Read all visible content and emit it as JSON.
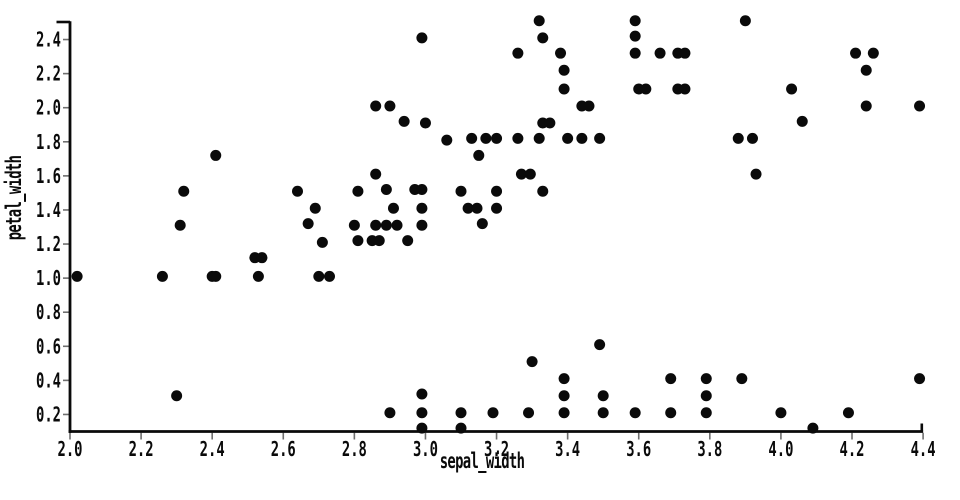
{
  "style": {
    "background_color": "#ffffff",
    "spine_color": "#0a0a0a",
    "tick_color": "#6f6f6f",
    "tick_label_color": "#0a0a0a",
    "axis_title_color": "#0a0a0a",
    "marker_color": "#0a0a0a"
  },
  "chart_data": {
    "type": "scatter",
    "title": "",
    "xlabel": "sepal_width",
    "ylabel": "petal_width",
    "xlim": [
      2.0,
      4.4
    ],
    "ylim": [
      0.1,
      2.5
    ],
    "grid": false,
    "legend": null,
    "marker": {
      "shape": "circle",
      "radius_px": 5.5
    },
    "x_tick_values": [
      2.0,
      2.2,
      2.4,
      2.6,
      2.8,
      3.0,
      3.2,
      3.4,
      3.6,
      3.8,
      4.0,
      4.2,
      4.4
    ],
    "x_tick_labels": [
      "2.0",
      "2.2",
      "2.4",
      "2.6",
      "2.8",
      "3.0",
      "3.2",
      "3.4",
      "3.6",
      "3.8",
      "4.0",
      "4.2",
      "4.4"
    ],
    "y_tick_values": [
      0.2,
      0.4,
      0.6,
      0.8,
      1.0,
      1.2,
      1.4,
      1.6,
      1.8,
      2.0,
      2.2,
      2.4
    ],
    "y_tick_labels": [
      "0.2",
      "0.4",
      "0.6",
      "0.8",
      "1.0",
      "1.2",
      "1.4",
      "1.6",
      "1.8",
      "2.0",
      "2.2",
      "2.4"
    ],
    "points": [
      [
        2.99,
        0.12
      ],
      [
        3.1,
        0.12
      ],
      [
        4.09,
        0.12
      ],
      [
        2.9,
        0.21
      ],
      [
        2.99,
        0.21
      ],
      [
        3.1,
        0.21
      ],
      [
        3.19,
        0.21
      ],
      [
        3.29,
        0.21
      ],
      [
        3.39,
        0.21
      ],
      [
        3.5,
        0.21
      ],
      [
        3.59,
        0.21
      ],
      [
        3.69,
        0.21
      ],
      [
        3.79,
        0.21
      ],
      [
        4.0,
        0.21
      ],
      [
        4.19,
        0.21
      ],
      [
        2.3,
        0.31
      ],
      [
        2.99,
        0.32
      ],
      [
        3.39,
        0.31
      ],
      [
        3.5,
        0.31
      ],
      [
        3.79,
        0.31
      ],
      [
        3.39,
        0.41
      ],
      [
        3.69,
        0.41
      ],
      [
        3.79,
        0.41
      ],
      [
        3.89,
        0.41
      ],
      [
        4.39,
        0.41
      ],
      [
        3.3,
        0.51
      ],
      [
        3.49,
        0.61
      ],
      [
        2.02,
        1.01
      ],
      [
        2.26,
        1.01
      ],
      [
        2.4,
        1.01
      ],
      [
        2.41,
        1.01
      ],
      [
        2.53,
        1.01
      ],
      [
        2.7,
        1.01
      ],
      [
        2.73,
        1.01
      ],
      [
        2.52,
        1.12
      ],
      [
        2.54,
        1.12
      ],
      [
        2.71,
        1.21
      ],
      [
        2.81,
        1.22
      ],
      [
        2.85,
        1.22
      ],
      [
        2.87,
        1.22
      ],
      [
        2.95,
        1.22
      ],
      [
        2.31,
        1.31
      ],
      [
        2.67,
        1.32
      ],
      [
        2.8,
        1.31
      ],
      [
        2.86,
        1.31
      ],
      [
        2.89,
        1.31
      ],
      [
        2.92,
        1.31
      ],
      [
        2.99,
        1.31
      ],
      [
        3.16,
        1.32
      ],
      [
        2.69,
        1.41
      ],
      [
        2.91,
        1.41
      ],
      [
        2.99,
        1.41
      ],
      [
        3.12,
        1.41
      ],
      [
        3.145,
        1.41
      ],
      [
        3.2,
        1.41
      ],
      [
        2.32,
        1.51
      ],
      [
        2.64,
        1.51
      ],
      [
        2.81,
        1.51
      ],
      [
        2.89,
        1.52
      ],
      [
        2.97,
        1.52
      ],
      [
        2.99,
        1.52
      ],
      [
        3.1,
        1.51
      ],
      [
        3.2,
        1.51
      ],
      [
        3.33,
        1.51
      ],
      [
        2.86,
        1.61
      ],
      [
        3.27,
        1.61
      ],
      [
        3.295,
        1.61
      ],
      [
        3.93,
        1.61
      ],
      [
        2.41,
        1.72
      ],
      [
        3.15,
        1.72
      ],
      [
        3.06,
        1.81
      ],
      [
        3.13,
        1.82
      ],
      [
        3.17,
        1.82
      ],
      [
        3.2,
        1.82
      ],
      [
        3.26,
        1.82
      ],
      [
        3.32,
        1.82
      ],
      [
        3.4,
        1.82
      ],
      [
        3.44,
        1.82
      ],
      [
        3.49,
        1.82
      ],
      [
        3.88,
        1.82
      ],
      [
        3.92,
        1.82
      ],
      [
        2.94,
        1.92
      ],
      [
        3.0,
        1.91
      ],
      [
        3.33,
        1.91
      ],
      [
        3.35,
        1.91
      ],
      [
        4.06,
        1.92
      ],
      [
        2.86,
        2.01
      ],
      [
        2.9,
        2.01
      ],
      [
        3.44,
        2.01
      ],
      [
        3.46,
        2.01
      ],
      [
        4.24,
        2.01
      ],
      [
        4.39,
        2.01
      ],
      [
        3.39,
        2.11
      ],
      [
        3.6,
        2.11
      ],
      [
        3.62,
        2.11
      ],
      [
        3.71,
        2.11
      ],
      [
        3.73,
        2.11
      ],
      [
        4.03,
        2.11
      ],
      [
        3.39,
        2.22
      ],
      [
        4.24,
        2.22
      ],
      [
        3.26,
        2.32
      ],
      [
        3.38,
        2.32
      ],
      [
        3.59,
        2.32
      ],
      [
        3.66,
        2.32
      ],
      [
        3.71,
        2.32
      ],
      [
        3.73,
        2.32
      ],
      [
        4.21,
        2.32
      ],
      [
        4.26,
        2.32
      ],
      [
        2.99,
        2.41
      ],
      [
        3.33,
        2.41
      ],
      [
        3.59,
        2.42
      ],
      [
        3.32,
        2.51
      ],
      [
        3.59,
        2.51
      ],
      [
        3.9,
        2.51
      ]
    ]
  }
}
